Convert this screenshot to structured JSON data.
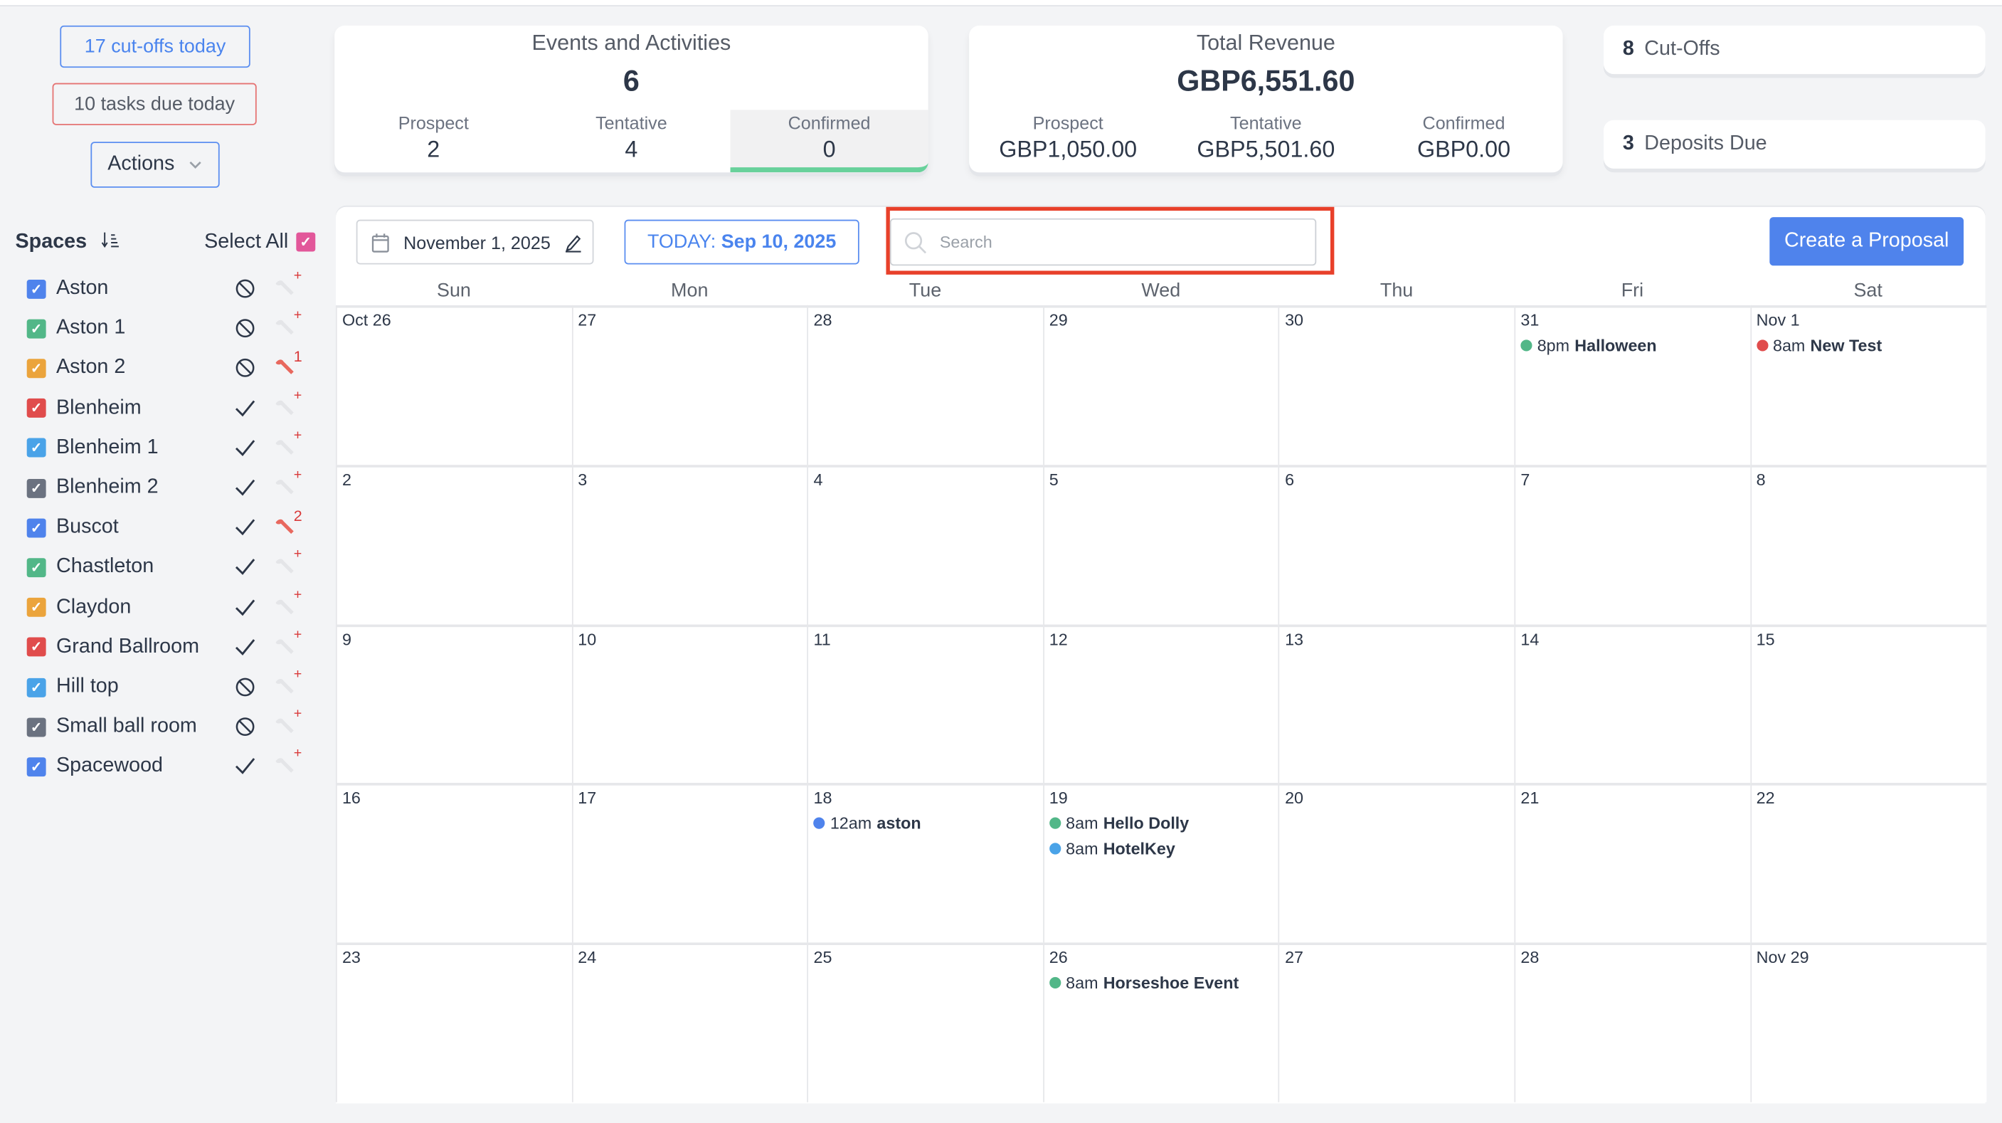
{
  "alerts": {
    "cutoffs_today": "17 cut-offs today",
    "tasks_due": "10 tasks due today",
    "actions": "Actions"
  },
  "spaces": {
    "title": "Spaces",
    "select_all": "Select All",
    "items": [
      {
        "name": "Aston",
        "color": "#4f83ec",
        "status": "blocked",
        "wrench": "+"
      },
      {
        "name": "Aston 1",
        "color": "#52b788",
        "status": "blocked",
        "wrench": "+"
      },
      {
        "name": "Aston 2",
        "color": "#eba43c",
        "status": "blocked",
        "wrench": "1"
      },
      {
        "name": "Blenheim",
        "color": "#e04c4c",
        "status": "check",
        "wrench": "+"
      },
      {
        "name": "Blenheim 1",
        "color": "#4aa3e8",
        "status": "check",
        "wrench": "+"
      },
      {
        "name": "Blenheim 2",
        "color": "#6b7280",
        "status": "check",
        "wrench": "+"
      },
      {
        "name": "Buscot",
        "color": "#4f83ec",
        "status": "check",
        "wrench": "2"
      },
      {
        "name": "Chastleton",
        "color": "#52b788",
        "status": "check",
        "wrench": "+"
      },
      {
        "name": "Claydon",
        "color": "#eba43c",
        "status": "check",
        "wrench": "+"
      },
      {
        "name": "Grand Ballroom",
        "color": "#e04c4c",
        "status": "check",
        "wrench": "+"
      },
      {
        "name": "Hill top",
        "color": "#4aa3e8",
        "status": "blocked",
        "wrench": "+"
      },
      {
        "name": "Small ball room",
        "color": "#6b7280",
        "status": "blocked",
        "wrench": "+"
      },
      {
        "name": "Spacewood",
        "color": "#4f83ec",
        "status": "check",
        "wrench": "+"
      }
    ]
  },
  "events_card": {
    "title": "Events and Activities",
    "total": "6",
    "cols": [
      {
        "label": "Prospect",
        "value": "2"
      },
      {
        "label": "Tentative",
        "value": "4"
      },
      {
        "label": "Confirmed",
        "value": "0"
      }
    ]
  },
  "revenue_card": {
    "title": "Total Revenue",
    "total": "GBP6,551.60",
    "cols": [
      {
        "label": "Prospect",
        "value": "GBP1,050.00"
      },
      {
        "label": "Tentative",
        "value": "GBP5,501.60"
      },
      {
        "label": "Confirmed",
        "value": "GBP0.00"
      }
    ]
  },
  "cutoffs": {
    "count": "8",
    "label": "Cut-Offs"
  },
  "deposits": {
    "count": "3",
    "label": "Deposits Due"
  },
  "toolbar": {
    "date": "November 1, 2025",
    "today_label": "TODAY:",
    "today_date": "Sep 10, 2025",
    "search_placeholder": "Search",
    "create": "Create a Proposal"
  },
  "calendar": {
    "days": [
      "Sun",
      "Mon",
      "Tue",
      "Wed",
      "Thu",
      "Fri",
      "Sat"
    ],
    "weeks": [
      [
        {
          "d": "Oct 26"
        },
        {
          "d": "27"
        },
        {
          "d": "28"
        },
        {
          "d": "29"
        },
        {
          "d": "30"
        },
        {
          "d": "31",
          "events": [
            {
              "time": "8pm",
              "title": "Halloween",
              "color": "#52b788"
            }
          ]
        },
        {
          "d": "Nov 1",
          "events": [
            {
              "time": "8am",
              "title": "New Test",
              "color": "#e04c4c"
            }
          ]
        }
      ],
      [
        {
          "d": "2"
        },
        {
          "d": "3"
        },
        {
          "d": "4"
        },
        {
          "d": "5"
        },
        {
          "d": "6"
        },
        {
          "d": "7"
        },
        {
          "d": "8"
        }
      ],
      [
        {
          "d": "9"
        },
        {
          "d": "10"
        },
        {
          "d": "11"
        },
        {
          "d": "12"
        },
        {
          "d": "13"
        },
        {
          "d": "14"
        },
        {
          "d": "15"
        }
      ],
      [
        {
          "d": "16"
        },
        {
          "d": "17"
        },
        {
          "d": "18",
          "events": [
            {
              "time": "12am",
              "title": "aston",
              "color": "#4f83ec"
            }
          ]
        },
        {
          "d": "19",
          "events": [
            {
              "time": "8am",
              "title": "Hello Dolly",
              "color": "#52b788"
            },
            {
              "time": "8am",
              "title": "HotelKey",
              "color": "#4aa3e8"
            }
          ]
        },
        {
          "d": "20"
        },
        {
          "d": "21"
        },
        {
          "d": "22"
        }
      ],
      [
        {
          "d": "23"
        },
        {
          "d": "24"
        },
        {
          "d": "25"
        },
        {
          "d": "26",
          "events": [
            {
              "time": "8am",
              "title": "Horseshoe Event",
              "color": "#52b788"
            }
          ]
        },
        {
          "d": "27"
        },
        {
          "d": "28"
        },
        {
          "d": "Nov 29"
        }
      ]
    ]
  }
}
